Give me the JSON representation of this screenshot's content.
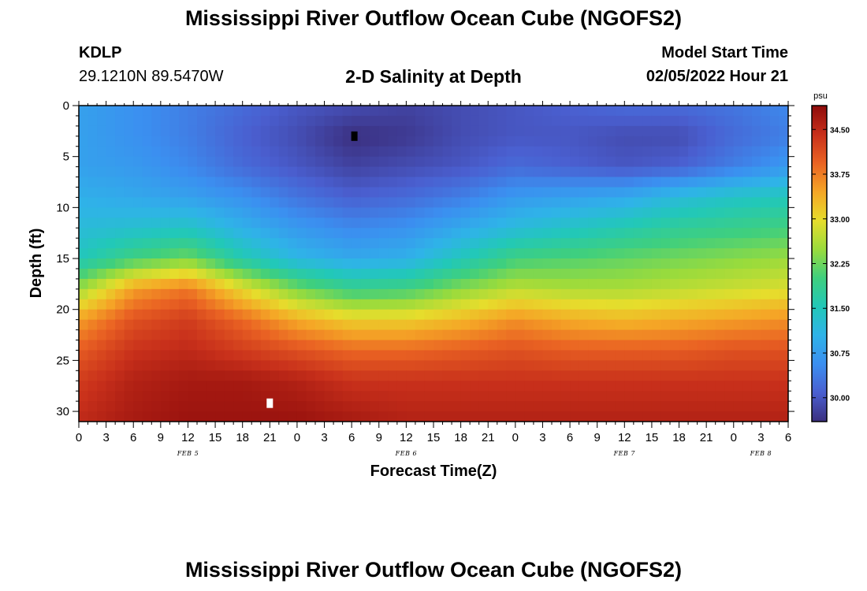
{
  "header": {
    "title": "Mississippi River Outflow Ocean Cube (NGOFS2)",
    "station": "KDLP",
    "coordinates": "29.1210N  89.5470W",
    "subtitle": "2-D Salinity at Depth",
    "model_start_label": "Model Start Time",
    "model_start_value": "02/05/2022 Hour 21"
  },
  "footer": {
    "title": "Mississippi River Outflow Ocean Cube (NGOFS2)"
  },
  "chart_data": {
    "type": "heatmap",
    "title": "2-D Salinity at Depth",
    "xlabel": "Forecast Time(Z)",
    "ylabel": "Depth (ft)",
    "x_tick_labels": [
      "0",
      "3",
      "6",
      "9",
      "12",
      "15",
      "18",
      "21",
      "0",
      "3",
      "6",
      "9",
      "12",
      "15",
      "18",
      "21",
      "0",
      "3",
      "6",
      "9",
      "12",
      "15",
      "18",
      "21",
      "0",
      "3",
      "6"
    ],
    "x_day_labels": [
      {
        "label": "FEB 5",
        "hour": 12
      },
      {
        "label": "FEB 6",
        "hour": 36
      },
      {
        "label": "FEB 7",
        "hour": 60
      },
      {
        "label": "FEB 8",
        "hour": 75
      }
    ],
    "x_range_hours": [
      0,
      78
    ],
    "y_ticks": [
      0,
      5,
      10,
      15,
      20,
      25,
      30
    ],
    "y_range": [
      0,
      31
    ],
    "y_inverted": true,
    "colorbar": {
      "unit": "psu",
      "range": [
        29.6,
        34.9
      ],
      "ticks": [
        "30.00",
        "30.75",
        "31.50",
        "32.25",
        "33.00",
        "33.75",
        "34.50"
      ],
      "tick_values": [
        30.0,
        30.75,
        31.5,
        32.25,
        33.0,
        33.75,
        34.5
      ],
      "colormap": [
        "#3b2f7f",
        "#4a5fd0",
        "#3b8ff0",
        "#2fb3e8",
        "#22c8b8",
        "#3fcf7e",
        "#9adb3c",
        "#e6dd2c",
        "#f5a626",
        "#ea6323",
        "#c8301b",
        "#8e0b0b"
      ]
    },
    "markers": [
      {
        "name": "minimum",
        "hour": 30.3,
        "depth": 3.0,
        "color": "#000000"
      },
      {
        "name": "maximum",
        "hour": 21.0,
        "depth": 29.2,
        "color": "#ffffff"
      }
    ],
    "salinity_field_psu": {
      "hours": [
        0,
        6,
        12,
        18,
        24,
        30,
        36,
        42,
        48,
        54,
        60,
        66,
        72,
        78
      ],
      "depths_ft": [
        0,
        3,
        6,
        9,
        12,
        15,
        18,
        21,
        24,
        27,
        31
      ],
      "values": [
        [
          30.8,
          30.6,
          30.4,
          30.2,
          30.0,
          29.9,
          29.8,
          29.9,
          30.0,
          30.1,
          30.2,
          30.2,
          30.3,
          30.5
        ],
        [
          30.8,
          30.6,
          30.4,
          30.1,
          29.9,
          29.6,
          29.7,
          29.9,
          30.0,
          30.0,
          29.9,
          29.9,
          30.2,
          30.4
        ],
        [
          30.8,
          30.7,
          30.5,
          30.2,
          30.0,
          29.8,
          29.9,
          30.0,
          30.2,
          30.1,
          30.0,
          30.1,
          30.4,
          30.7
        ],
        [
          31.0,
          30.9,
          30.8,
          30.6,
          30.3,
          30.1,
          30.2,
          30.4,
          30.7,
          30.8,
          30.9,
          31.2,
          31.4,
          31.5
        ],
        [
          31.2,
          31.3,
          31.4,
          31.0,
          30.7,
          30.5,
          30.6,
          30.9,
          31.2,
          31.4,
          31.6,
          31.8,
          31.9,
          32.0
        ],
        [
          31.5,
          32.0,
          32.3,
          31.6,
          31.1,
          30.9,
          31.0,
          31.5,
          32.0,
          32.1,
          32.2,
          32.3,
          32.4,
          32.5
        ],
        [
          32.5,
          33.5,
          33.8,
          33.0,
          32.3,
          31.9,
          32.0,
          32.4,
          32.7,
          32.6,
          32.6,
          32.7,
          32.8,
          32.9
        ],
        [
          33.5,
          34.1,
          34.3,
          33.9,
          33.4,
          33.1,
          33.1,
          33.3,
          33.6,
          33.4,
          33.3,
          33.4,
          33.5,
          33.6
        ],
        [
          34.0,
          34.4,
          34.5,
          34.3,
          34.1,
          33.9,
          33.9,
          34.0,
          34.1,
          34.0,
          34.0,
          34.0,
          34.1,
          34.1
        ],
        [
          34.3,
          34.6,
          34.7,
          34.7,
          34.6,
          34.4,
          34.4,
          34.4,
          34.4,
          34.4,
          34.4,
          34.4,
          34.4,
          34.4
        ],
        [
          34.5,
          34.7,
          34.8,
          34.8,
          34.8,
          34.7,
          34.6,
          34.6,
          34.6,
          34.6,
          34.6,
          34.6,
          34.6,
          34.6
        ]
      ]
    }
  }
}
